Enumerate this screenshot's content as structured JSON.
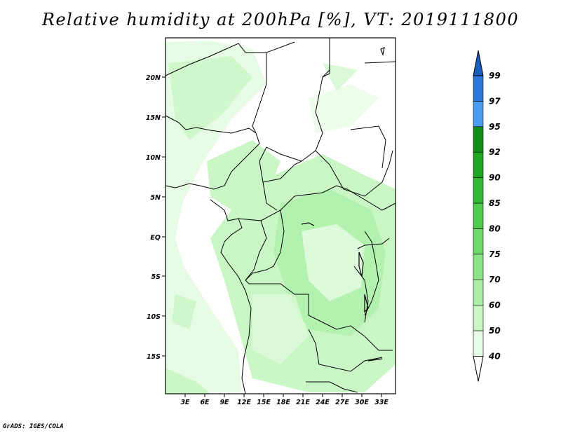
{
  "title": "Relative humidity at 200hPa [%], VT: 2019111800",
  "credit": "GrADS: IGES/COLA",
  "map": {
    "lat_ticks": [
      "20N",
      "15N",
      "10N",
      "5N",
      "EQ",
      "5S",
      "10S",
      "15S"
    ],
    "lon_ticks": [
      "3E",
      "6E",
      "9E",
      "12E",
      "15E",
      "18E",
      "21E",
      "24E",
      "27E",
      "30E",
      "33E"
    ]
  },
  "colorbar": {
    "levels": [
      "40",
      "50",
      "60",
      "70",
      "75",
      "80",
      "85",
      "90",
      "92",
      "95",
      "97",
      "99"
    ],
    "colors": [
      "#ffffff",
      "#e6fbe3",
      "#c9f6c4",
      "#aaefa5",
      "#8ce486",
      "#6fd86a",
      "#4fcb4e",
      "#35b837",
      "#20a524",
      "#118f16",
      "#4c9df0",
      "#2a77d9",
      "#1a5fbf"
    ]
  }
}
